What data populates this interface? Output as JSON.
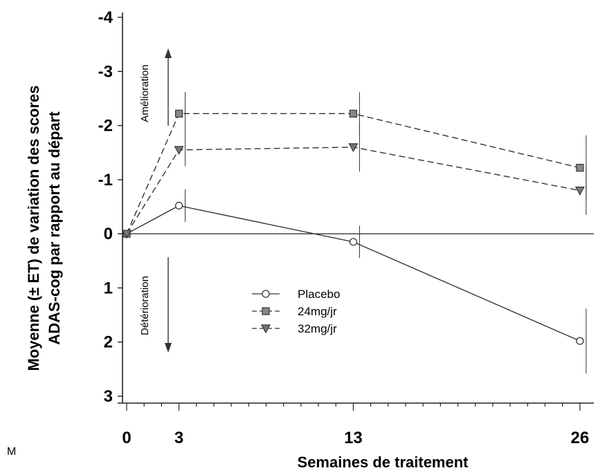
{
  "chart_data": {
    "type": "line",
    "title": "",
    "xlabel": "Semaines de traitement",
    "ylabel_lines": [
      "Moyenne (± ET) de variation des scores",
      "ADAS-cog par rapport au départ"
    ],
    "x": [
      0,
      3,
      13,
      26
    ],
    "x_tick_labels": [
      "0",
      "3",
      "13",
      "26"
    ],
    "xlim": [
      0,
      26.8
    ],
    "ylim": [
      -4,
      3
    ],
    "y_inverted": true,
    "y_ticks": [
      -4,
      -3,
      -2,
      -1,
      0,
      1,
      2,
      3
    ],
    "y_tick_labels": [
      "-4",
      "-3",
      "-2",
      "-1",
      "0",
      "1",
      "2",
      "3"
    ],
    "grid": false,
    "reference_line": 0,
    "legend_position": "center",
    "series": [
      {
        "name": "Placebo",
        "marker": "circle",
        "line": "solid",
        "values": [
          0,
          -0.52,
          0.15,
          1.98
        ],
        "err": [
          0,
          0.3,
          0.3,
          0.6
        ]
      },
      {
        "name": "24mg/jr",
        "marker": "square",
        "line": "dashed",
        "values": [
          0,
          -2.22,
          -2.22,
          -1.22
        ],
        "err": [
          0,
          0.4,
          0.4,
          0.6
        ]
      },
      {
        "name": "32mg/jr",
        "marker": "triangle-down",
        "line": "dashed",
        "values": [
          0,
          -1.55,
          -1.6,
          -0.8
        ],
        "err": [
          0,
          0.3,
          0.45,
          0.45
        ]
      }
    ],
    "annotations": {
      "improvement": "Amélioration",
      "deterioration": "Détérioration"
    },
    "stray_mark": "M"
  }
}
